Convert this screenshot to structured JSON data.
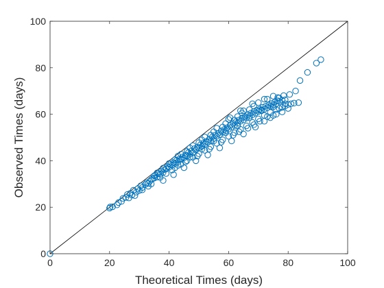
{
  "chart_data": {
    "type": "scatter",
    "title": "",
    "xlabel": "Theoretical Times (days)",
    "ylabel": "Observed Times (days)",
    "xlim": [
      0,
      100
    ],
    "ylim": [
      0,
      100
    ],
    "xticks": [
      "0",
      "20",
      "40",
      "60",
      "80",
      "100"
    ],
    "yticks": [
      "0",
      "20",
      "40",
      "60",
      "80",
      "100"
    ],
    "grid": false,
    "legend": "none",
    "reference_line": {
      "x": [
        0,
        100
      ],
      "y": [
        0,
        100
      ],
      "color": "#000000"
    },
    "series": [
      {
        "color": "#0072BD",
        "marker": "open-circle",
        "points": [
          [
            0,
            0
          ],
          [
            20,
            19.6
          ],
          [
            20.2,
            20.1
          ],
          [
            23,
            22
          ],
          [
            24.5,
            23.8
          ],
          [
            25.5,
            24.2
          ],
          [
            26,
            25.5
          ],
          [
            27,
            26
          ],
          [
            27.5,
            25.2
          ],
          [
            28,
            27.3
          ],
          [
            29,
            26.5
          ],
          [
            29.5,
            28
          ],
          [
            30,
            27.2
          ],
          [
            30.5,
            29.2
          ],
          [
            31,
            28.5
          ],
          [
            32,
            29.8
          ],
          [
            32.5,
            30.5
          ],
          [
            33,
            30.2
          ],
          [
            33.5,
            31.2
          ],
          [
            34,
            31.8
          ],
          [
            34.5,
            32.3
          ],
          [
            35,
            32.5
          ],
          [
            35.5,
            33.8
          ],
          [
            36,
            33
          ],
          [
            36.5,
            34.5
          ],
          [
            37,
            34.2
          ],
          [
            37.5,
            35.6
          ],
          [
            38,
            35
          ],
          [
            38.5,
            36.2
          ],
          [
            39,
            36.5
          ],
          [
            39.5,
            37.5
          ],
          [
            40,
            37.2
          ],
          [
            40.5,
            38.4
          ],
          [
            41,
            38
          ],
          [
            41.5,
            39.2
          ],
          [
            42,
            38.8
          ],
          [
            42.5,
            40.2
          ],
          [
            43,
            39.5
          ],
          [
            43.5,
            40.8
          ],
          [
            44,
            40.5
          ],
          [
            44.5,
            41.6
          ],
          [
            45,
            41.2
          ],
          [
            45.5,
            42.4
          ],
          [
            46,
            42.2
          ],
          [
            46.5,
            43.5
          ],
          [
            47,
            42.8
          ],
          [
            47.5,
            44.2
          ],
          [
            48,
            43.5
          ],
          [
            48.5,
            45.2
          ],
          [
            49,
            44.6
          ],
          [
            49.5,
            45.8
          ],
          [
            50,
            45.5
          ],
          [
            50.5,
            46.8
          ],
          [
            51,
            46.2
          ],
          [
            51.5,
            47.5
          ],
          [
            52,
            47.2
          ],
          [
            52.5,
            48.3
          ],
          [
            53,
            48
          ],
          [
            53.5,
            49.2
          ],
          [
            54,
            48.6
          ],
          [
            54.5,
            50.2
          ],
          [
            55,
            49.6
          ],
          [
            55.5,
            51
          ],
          [
            56,
            50.5
          ],
          [
            56.5,
            51.8
          ],
          [
            57,
            51.2
          ],
          [
            57.5,
            52.8
          ],
          [
            58,
            52.2
          ],
          [
            58.5,
            53.4
          ],
          [
            59,
            53
          ],
          [
            59.5,
            54.2
          ],
          [
            60,
            53.6
          ],
          [
            60.5,
            55.2
          ],
          [
            61,
            54.5
          ],
          [
            61.5,
            56
          ],
          [
            62,
            55.2
          ],
          [
            62.5,
            56.8
          ],
          [
            63,
            56.2
          ],
          [
            63.5,
            57.5
          ],
          [
            64,
            57
          ],
          [
            64.5,
            58.4
          ],
          [
            65,
            57.6
          ],
          [
            65.5,
            59
          ],
          [
            66,
            58.4
          ],
          [
            66.5,
            59.8
          ],
          [
            67,
            59.2
          ],
          [
            67.5,
            60.5
          ],
          [
            68,
            59.8
          ],
          [
            68.5,
            61.2
          ],
          [
            69,
            60.5
          ],
          [
            69.5,
            61.8
          ],
          [
            70,
            61.2
          ],
          [
            70.5,
            62.2
          ],
          [
            71,
            61.8
          ],
          [
            71.5,
            63
          ],
          [
            72,
            62.2
          ],
          [
            72.5,
            63.5
          ],
          [
            73,
            62.8
          ],
          [
            73.5,
            64
          ],
          [
            74,
            63.4
          ],
          [
            74.5,
            64.6
          ],
          [
            75,
            64
          ],
          [
            75.5,
            65.2
          ],
          [
            76,
            64.5
          ],
          [
            76.5,
            65.8
          ],
          [
            77,
            65.5
          ],
          [
            78,
            66
          ],
          [
            79,
            64.5
          ],
          [
            80,
            64.2
          ],
          [
            82,
            64.8
          ],
          [
            83.5,
            65
          ],
          [
            80.5,
            68.5
          ],
          [
            82.5,
            70
          ],
          [
            84,
            74.5
          ],
          [
            86.5,
            78
          ],
          [
            89.5,
            82
          ],
          [
            91,
            83.5
          ],
          [
            44,
            38.5
          ],
          [
            46,
            40
          ],
          [
            48,
            41.5
          ],
          [
            50,
            43
          ],
          [
            52,
            44.5
          ],
          [
            54,
            46
          ],
          [
            56,
            47.5
          ],
          [
            58,
            49
          ],
          [
            60,
            50.5
          ],
          [
            62,
            52
          ],
          [
            64,
            53.5
          ],
          [
            66,
            55
          ],
          [
            68,
            56.5
          ],
          [
            70,
            58
          ],
          [
            72,
            59.5
          ],
          [
            74,
            60.8
          ],
          [
            76,
            62
          ],
          [
            78,
            63
          ],
          [
            41,
            36
          ],
          [
            37,
            32.8
          ],
          [
            33,
            29
          ],
          [
            39,
            34.5
          ],
          [
            43,
            38
          ],
          [
            47,
            41.5
          ],
          [
            51,
            45
          ],
          [
            55,
            48.5
          ],
          [
            59,
            52
          ],
          [
            63,
            55
          ],
          [
            67,
            58.5
          ],
          [
            71,
            61.5
          ],
          [
            75,
            63.2
          ],
          [
            36,
            34.8
          ],
          [
            40,
            38.8
          ],
          [
            44,
            42.8
          ],
          [
            48,
            46.5
          ],
          [
            52,
            50.2
          ],
          [
            56,
            54
          ],
          [
            60,
            57.8
          ],
          [
            64,
            61.5
          ],
          [
            68,
            64.5
          ],
          [
            72,
            66.5
          ],
          [
            75,
            67.8
          ],
          [
            77,
            67
          ],
          [
            79,
            66.2
          ],
          [
            80,
            62.5
          ],
          [
            78,
            61
          ],
          [
            76,
            60
          ],
          [
            74,
            58.5
          ],
          [
            72,
            57
          ],
          [
            69,
            54.5
          ],
          [
            65,
            51.5
          ],
          [
            61,
            48.5
          ],
          [
            57,
            45.5
          ],
          [
            53,
            42.5
          ],
          [
            49,
            40
          ],
          [
            45,
            37
          ],
          [
            41.5,
            34
          ],
          [
            38,
            31.5
          ],
          [
            34,
            30
          ],
          [
            31,
            27.5
          ],
          [
            28.5,
            25
          ],
          [
            26.5,
            24
          ],
          [
            24,
            22.5
          ],
          [
            22.5,
            21
          ],
          [
            21,
            20.2
          ],
          [
            67,
            62
          ],
          [
            63,
            59
          ],
          [
            59,
            56
          ],
          [
            55,
            52.5
          ],
          [
            51,
            49
          ],
          [
            47,
            45.5
          ],
          [
            43,
            42
          ],
          [
            65,
            61.5
          ],
          [
            70,
            65
          ],
          [
            73,
            66.5
          ],
          [
            76.5,
            67.2
          ],
          [
            78.5,
            68
          ],
          [
            62,
            57.5
          ],
          [
            58,
            54.5
          ],
          [
            54,
            51
          ],
          [
            50,
            47.8
          ],
          [
            46,
            44
          ],
          [
            42,
            40.5
          ],
          [
            38,
            36.8
          ],
          [
            35,
            33.5
          ],
          [
            61.5,
            51
          ],
          [
            63.5,
            52.5
          ],
          [
            66.5,
            54
          ],
          [
            68.5,
            55.5
          ],
          [
            70.5,
            57
          ],
          [
            73,
            59
          ],
          [
            75,
            59.5
          ],
          [
            77,
            62.5
          ],
          [
            79,
            63.5
          ],
          [
            81,
            64.5
          ],
          [
            57.5,
            48
          ],
          [
            53.5,
            45
          ],
          [
            49.5,
            42
          ],
          [
            45.5,
            39.5
          ],
          [
            42,
            37
          ],
          [
            60.5,
            58.5
          ],
          [
            64.5,
            60.5
          ],
          [
            68.5,
            63.5
          ]
        ]
      }
    ]
  }
}
